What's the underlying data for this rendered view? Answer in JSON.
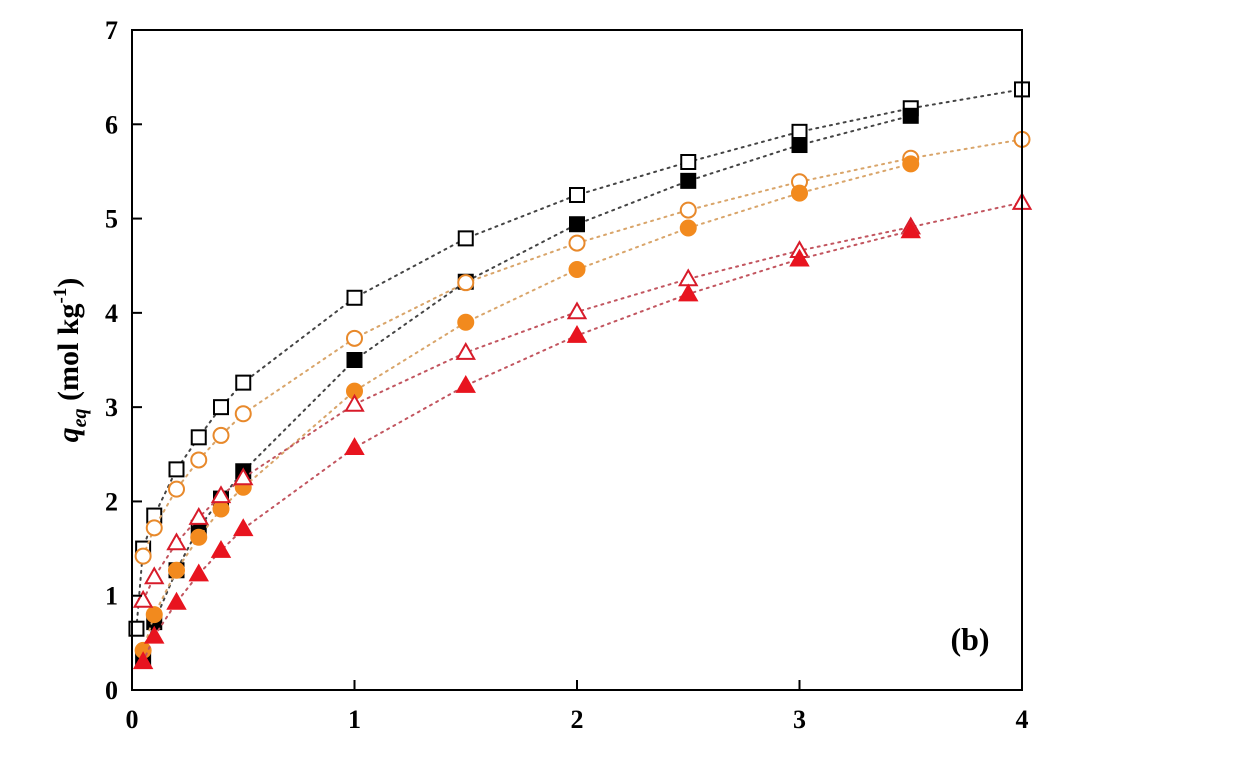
{
  "chart_data": {
    "type": "scatter",
    "panel_label": "(b)",
    "ylabel": {
      "symbol": "q",
      "subscript": "eq",
      "unit_prefix": " (mol kg",
      "unit_sup": "-1",
      "unit_suffix": ")"
    },
    "xlabel": "",
    "xlim": [
      0,
      4
    ],
    "ylim": [
      0,
      7
    ],
    "x_ticks": [
      0,
      1,
      2,
      3,
      4
    ],
    "y_ticks": [
      0,
      1,
      2,
      3,
      4,
      5,
      6,
      7
    ],
    "grid": false,
    "series": [
      {
        "marker": "square",
        "filled": false,
        "color": "#000000",
        "line_color": "#444444",
        "x": [
          0.02,
          0.05,
          0.1,
          0.2,
          0.3,
          0.4,
          0.5,
          1.0,
          1.5,
          2.0,
          2.5,
          3.0,
          3.5,
          4.0
        ],
        "y": [
          0.65,
          1.5,
          1.85,
          2.34,
          2.68,
          3.0,
          3.26,
          4.16,
          4.79,
          5.25,
          5.6,
          5.92,
          6.17,
          6.37
        ]
      },
      {
        "marker": "square",
        "filled": true,
        "color": "#000000",
        "line_color": "#444444",
        "x": [
          0.05,
          0.1,
          0.2,
          0.3,
          0.4,
          0.5,
          1.0,
          1.5,
          2.0,
          2.5,
          3.0,
          3.5
        ],
        "y": [
          0.32,
          0.72,
          1.27,
          1.72,
          2.03,
          2.32,
          3.5,
          4.33,
          4.94,
          5.4,
          5.78,
          6.09
        ]
      },
      {
        "marker": "circle",
        "filled": false,
        "color": "#e8892b",
        "line_color": "#d9a56a",
        "x": [
          0.05,
          0.1,
          0.2,
          0.3,
          0.4,
          0.5,
          1.0,
          1.5,
          2.0,
          2.5,
          3.0,
          3.5,
          4.0
        ],
        "y": [
          1.42,
          1.72,
          2.13,
          2.44,
          2.7,
          2.93,
          3.73,
          4.32,
          4.74,
          5.09,
          5.39,
          5.64,
          5.84
        ]
      },
      {
        "marker": "circle",
        "filled": true,
        "color": "#f28a1e",
        "line_color": "#d9a56a",
        "x": [
          0.05,
          0.1,
          0.2,
          0.3,
          0.4,
          0.5,
          1.0,
          1.5,
          2.0,
          2.5,
          3.0,
          3.5
        ],
        "y": [
          0.42,
          0.8,
          1.27,
          1.62,
          1.92,
          2.15,
          3.17,
          3.9,
          4.46,
          4.9,
          5.27,
          5.58
        ]
      },
      {
        "marker": "triangle",
        "filled": false,
        "color": "#d81b2a",
        "line_color": "#c2555f",
        "x": [
          0.05,
          0.1,
          0.2,
          0.3,
          0.4,
          0.5,
          1.0,
          1.5,
          2.0,
          2.5,
          3.0,
          3.5,
          4.0
        ],
        "y": [
          0.95,
          1.2,
          1.56,
          1.83,
          2.06,
          2.25,
          3.03,
          3.58,
          4.01,
          4.36,
          4.66,
          4.91,
          5.17
        ]
      },
      {
        "marker": "triangle",
        "filled": true,
        "color": "#e8141f",
        "line_color": "#c2555f",
        "x": [
          0.05,
          0.1,
          0.2,
          0.3,
          0.4,
          0.5,
          1.0,
          1.5,
          2.0,
          2.5,
          3.0,
          3.5
        ],
        "y": [
          0.3,
          0.57,
          0.93,
          1.23,
          1.48,
          1.71,
          2.57,
          3.23,
          3.76,
          4.2,
          4.57,
          4.87
        ]
      }
    ]
  }
}
